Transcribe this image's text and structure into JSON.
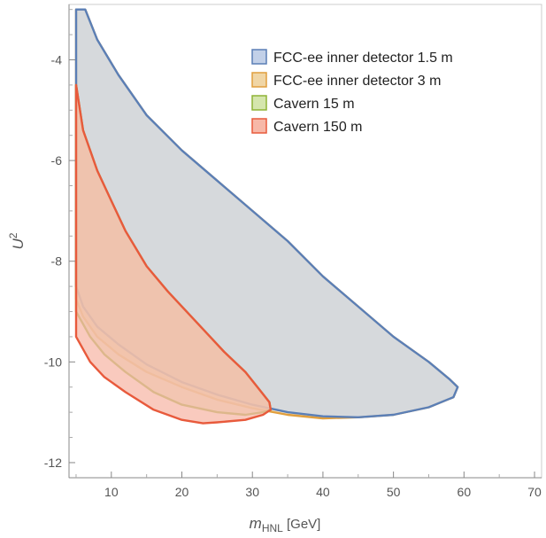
{
  "chart_data": {
    "type": "area",
    "xlabel": "m",
    "xlabel_sub": "HNL",
    "xlabel_unit": " [GeV]",
    "ylabel": "U",
    "ylabel_sup": "2",
    "xlim": [
      4,
      71
    ],
    "ylim": [
      -12.3,
      -2.9
    ],
    "xticks": [
      10,
      20,
      30,
      40,
      50,
      60,
      70
    ],
    "yticks": [
      -12,
      -10,
      -8,
      -6,
      -4
    ],
    "xtick_labels": [
      "10",
      "20",
      "30",
      "40",
      "50",
      "60",
      "70"
    ],
    "ytick_labels": [
      "-12",
      "-10",
      "-8",
      "-6",
      "-4"
    ],
    "grid": false,
    "legend_position": "top-right",
    "series": [
      {
        "name": "FCC-ee inner detector 1.5 m",
        "stroke": "#5b7fb6",
        "fill": "#c2d0e8",
        "points": [
          [
            5,
            -3
          ],
          [
            6.3,
            -3
          ],
          [
            8,
            -3.6
          ],
          [
            11,
            -4.3
          ],
          [
            15,
            -5.1
          ],
          [
            20,
            -5.8
          ],
          [
            25,
            -6.4
          ],
          [
            30,
            -7
          ],
          [
            35,
            -7.6
          ],
          [
            40,
            -8.3
          ],
          [
            45,
            -8.9
          ],
          [
            50,
            -9.5
          ],
          [
            55,
            -10
          ],
          [
            58,
            -10.35
          ],
          [
            59.1,
            -10.5
          ],
          [
            58.5,
            -10.7
          ],
          [
            55,
            -10.9
          ],
          [
            50,
            -11.05
          ],
          [
            45,
            -11.1
          ],
          [
            40,
            -11.08
          ],
          [
            35,
            -11
          ],
          [
            30,
            -10.85
          ],
          [
            25,
            -10.65
          ],
          [
            20,
            -10.4
          ],
          [
            15,
            -10.05
          ],
          [
            11,
            -9.65
          ],
          [
            8,
            -9.3
          ],
          [
            6,
            -8.9
          ],
          [
            5,
            -8.5
          ]
        ]
      },
      {
        "name": "FCC-ee inner detector 3 m",
        "stroke": "#e09f3e",
        "fill": "#f0d6a6",
        "points": [
          [
            5,
            -3
          ],
          [
            6.3,
            -3
          ],
          [
            8,
            -3.6
          ],
          [
            11,
            -4.3
          ],
          [
            15,
            -5.1
          ],
          [
            20,
            -5.8
          ],
          [
            25,
            -6.4
          ],
          [
            30,
            -7
          ],
          [
            35,
            -7.6
          ],
          [
            40,
            -8.3
          ],
          [
            45,
            -8.9
          ],
          [
            50,
            -9.5
          ],
          [
            55,
            -10
          ],
          [
            58,
            -10.35
          ],
          [
            59.1,
            -10.5
          ],
          [
            58.5,
            -10.7
          ],
          [
            55,
            -10.9
          ],
          [
            50,
            -11.05
          ],
          [
            45,
            -11.1
          ],
          [
            40,
            -11.12
          ],
          [
            35,
            -11.05
          ],
          [
            30,
            -10.92
          ],
          [
            25,
            -10.75
          ],
          [
            20,
            -10.5
          ],
          [
            15,
            -10.2
          ],
          [
            11,
            -9.85
          ],
          [
            8,
            -9.5
          ],
          [
            6,
            -9.1
          ],
          [
            5,
            -8.75
          ]
        ]
      },
      {
        "name": "Cavern 15 m",
        "stroke": "#8fb336",
        "fill": "#d5e6ad",
        "points": [
          [
            5,
            -4.5
          ],
          [
            6,
            -5.4
          ],
          [
            8,
            -6.2
          ],
          [
            10,
            -6.8
          ],
          [
            12,
            -7.4
          ],
          [
            15,
            -8.1
          ],
          [
            18,
            -8.6
          ],
          [
            22,
            -9.2
          ],
          [
            26,
            -9.8
          ],
          [
            29,
            -10.2
          ],
          [
            31,
            -10.55
          ],
          [
            32.4,
            -10.8
          ],
          [
            32.6,
            -10.95
          ],
          [
            31.5,
            -11.0
          ],
          [
            29,
            -11.05
          ],
          [
            25,
            -11.0
          ],
          [
            20,
            -10.85
          ],
          [
            16,
            -10.6
          ],
          [
            12,
            -10.2
          ],
          [
            9,
            -9.85
          ],
          [
            7,
            -9.5
          ],
          [
            5,
            -9.0
          ]
        ]
      },
      {
        "name": "Cavern 150 m",
        "stroke": "#e85a3c",
        "fill": "#f7b8a8",
        "points": [
          [
            5,
            -4.5
          ],
          [
            6,
            -5.4
          ],
          [
            8,
            -6.2
          ],
          [
            10,
            -6.8
          ],
          [
            12,
            -7.4
          ],
          [
            15,
            -8.1
          ],
          [
            18,
            -8.6
          ],
          [
            22,
            -9.2
          ],
          [
            26,
            -9.8
          ],
          [
            29,
            -10.2
          ],
          [
            31,
            -10.55
          ],
          [
            32.4,
            -10.8
          ],
          [
            32.6,
            -10.95
          ],
          [
            31.5,
            -11.05
          ],
          [
            29,
            -11.15
          ],
          [
            25,
            -11.2
          ],
          [
            23,
            -11.22
          ],
          [
            20,
            -11.15
          ],
          [
            16,
            -10.95
          ],
          [
            12,
            -10.6
          ],
          [
            9,
            -10.3
          ],
          [
            7,
            -10.0
          ],
          [
            5,
            -9.5
          ]
        ]
      }
    ],
    "draw_order": [
      1,
      0,
      2,
      3
    ],
    "overlap_fill": "#d5c5ab",
    "cavern_overlap_fill": "#d3a172"
  }
}
